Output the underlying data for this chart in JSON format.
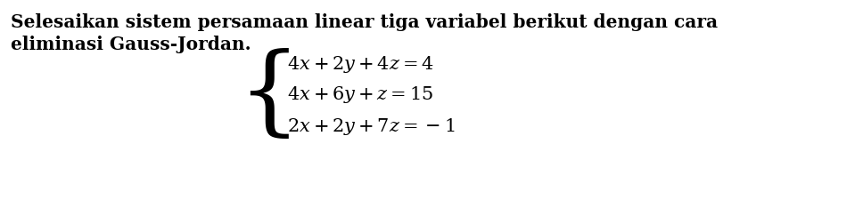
{
  "line1": "Selesaikan sistem persamaan linear tiga variabel berikut dengan cara",
  "line2": "eliminasi Gauss-Jordan.",
  "eq1": "$4x + 2y + 4z = 4$",
  "eq2": "$4x + 6y + z = 15$",
  "eq3": "$2x + 2y + 7z = -1$",
  "bg_color": "#ffffff",
  "text_color": "#000000",
  "para_fontsize": 14.5,
  "eq_fontsize": 15.0,
  "brace_fontsize": 80,
  "fig_width": 9.68,
  "fig_height": 2.25
}
